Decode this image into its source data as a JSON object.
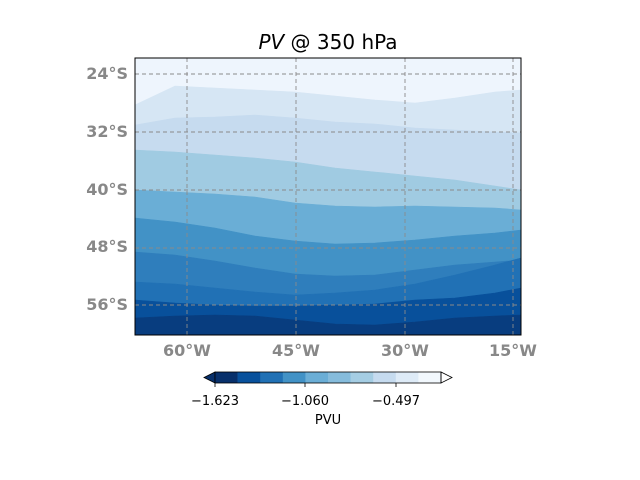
{
  "title": {
    "var": "PV",
    "rest": " @ 350 hPa"
  },
  "map": {
    "lat_labels": [
      "24°S",
      "32°S",
      "40°S",
      "48°S",
      "56°S"
    ],
    "lon_labels": [
      "60°W",
      "45°W",
      "30°W",
      "15°W"
    ],
    "lat_range": [
      -22,
      -60.5
    ],
    "lon_range": [
      -67,
      -14
    ],
    "gridlines": true,
    "gridline_style": "dashed",
    "fill_bands_north_to_south": [
      "#eef5fd",
      "#d6e6f4",
      "#c6dbef",
      "#a0cbe2",
      "#6aaed6",
      "#4292c6",
      "#2f7ebc",
      "#2171b5",
      "#08509b",
      "#083d7f"
    ]
  },
  "colorbar": {
    "label": "PVU",
    "tick_labels": [
      "−1.623",
      "−1.060",
      "−0.497"
    ],
    "colors": [
      "#08306b",
      "#08519c",
      "#2171b5",
      "#4292c6",
      "#6baed6",
      "#86bcdc",
      "#a5cde3",
      "#c6dbef",
      "#deebf7",
      "#f2f8fd"
    ],
    "extend": "both"
  }
}
